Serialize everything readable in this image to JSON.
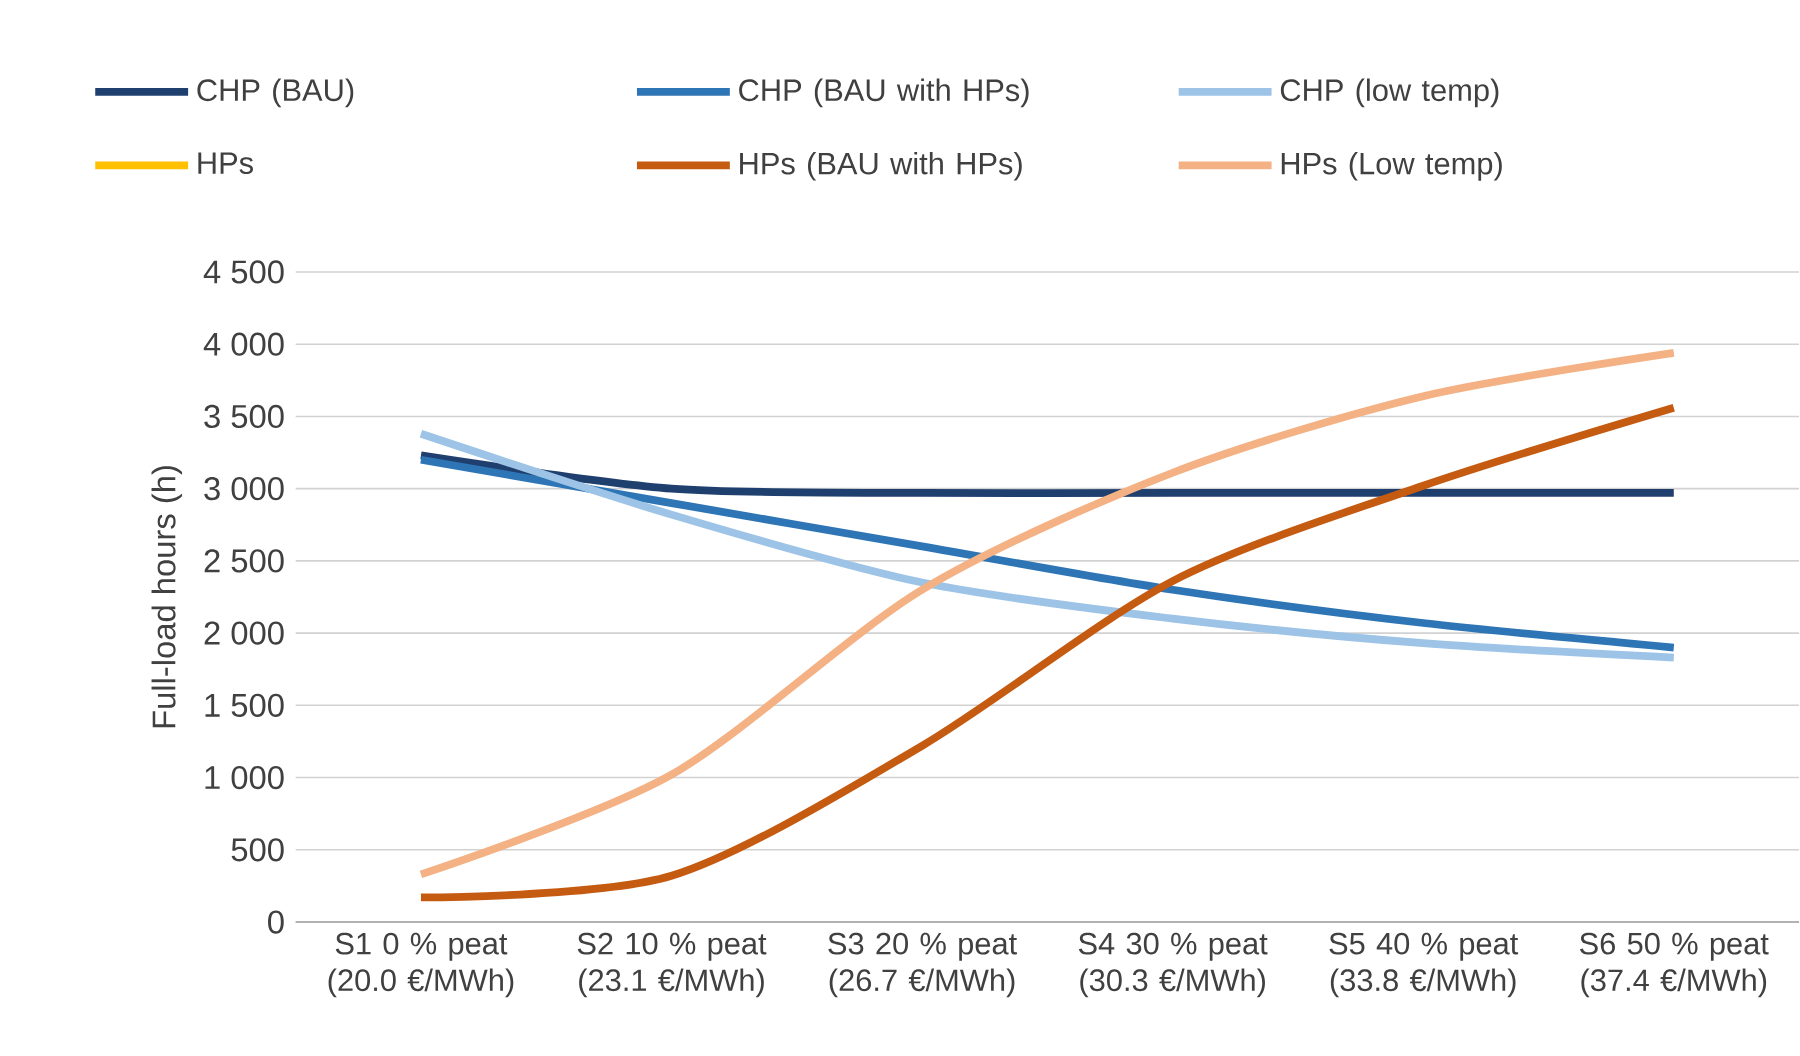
{
  "chart_data": {
    "type": "line",
    "ylabel": "Full-load hours (h)",
    "categories": [
      "S1 0 % peat (20.0 €/MWh)",
      "S2 10 % peat (23.1 €/MWh)",
      "S3 20 % peat (26.7 €/MWh)",
      "S4 30 % peat (30.3 €/MWh)",
      "S5 40 % peat (33.8 €/MWh)",
      "S6 50 % peat (37.4 €/MWh)"
    ],
    "series": [
      {
        "name": "CHP (BAU)",
        "color": "#1f3f6e",
        "values": [
          3230,
          3000,
          2970,
          2970,
          2970,
          2970
        ]
      },
      {
        "name": "CHP (BAU with HPs)",
        "color": "#2e75b6",
        "values": [
          3200,
          2900,
          2600,
          2300,
          2070,
          1900
        ]
      },
      {
        "name": "CHP (low temp)",
        "color": "#9dc3e6",
        "values": [
          3380,
          2820,
          2350,
          2100,
          1930,
          1830
        ]
      },
      {
        "name": "HPs",
        "color": "#ffc000",
        "values": [
          null,
          null,
          null,
          null,
          null,
          null
        ]
      },
      {
        "name": "HPs (BAU with HPs)",
        "color": "#c55a11",
        "values": [
          170,
          320,
          1220,
          2360,
          3020,
          3560
        ]
      },
      {
        "name": "HPs (Low temp)",
        "color": "#f4b183",
        "values": [
          330,
          1020,
          2300,
          3110,
          3640,
          3940
        ]
      }
    ],
    "ylim": [
      0,
      4500
    ],
    "yticks": [
      0,
      500,
      {
        "value": 1000,
        "label": "1 000"
      },
      {
        "value": 1500,
        "label": "1 500"
      },
      {
        "value": 2000,
        "label": "2 000"
      },
      {
        "value": 2500,
        "label": "2 500"
      },
      {
        "value": 3000,
        "label": "3 000"
      },
      {
        "value": 3500,
        "label": "3 500"
      },
      {
        "value": 4000,
        "label": "4 000"
      },
      {
        "value": 4500,
        "label": "4 500"
      }
    ],
    "grid": "y",
    "legend": "top",
    "marker": "none",
    "line_style": "solid"
  }
}
